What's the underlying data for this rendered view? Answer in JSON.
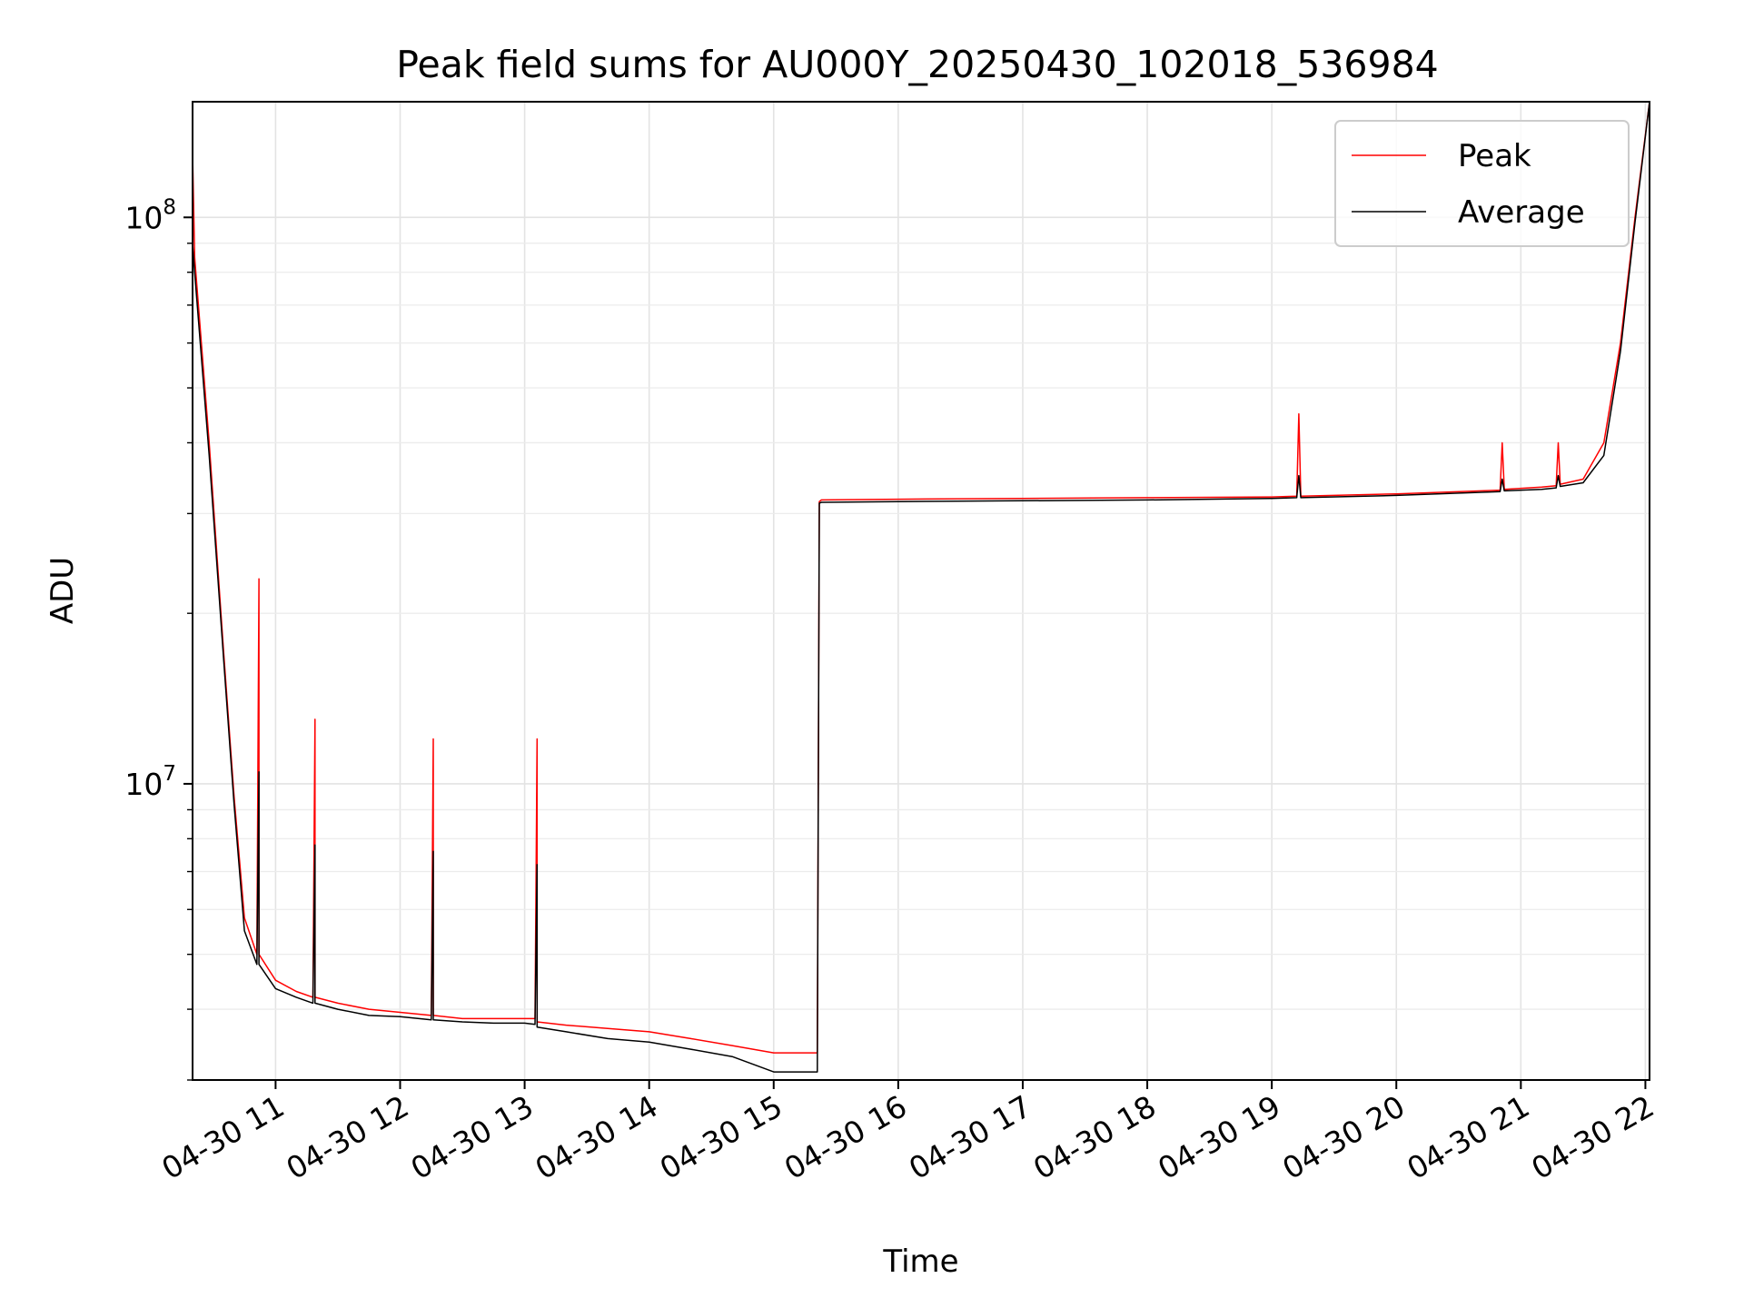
{
  "chart_data": {
    "type": "line",
    "title": "Peak field sums for AU000Y_20250430_102018_536984",
    "xlabel": "Time",
    "ylabel": "ADU",
    "y_scale": "log",
    "ylim": [
      3000000,
      160000000
    ],
    "xlim": [
      "2025-04-30 10:20",
      "2025-04-30 22:02"
    ],
    "grid": true,
    "legend_position": "top-right",
    "x_ticks": [
      {
        "value": "2025-04-30 11:00",
        "label": "04-30 11"
      },
      {
        "value": "2025-04-30 12:00",
        "label": "04-30 12"
      },
      {
        "value": "2025-04-30 13:00",
        "label": "04-30 13"
      },
      {
        "value": "2025-04-30 14:00",
        "label": "04-30 14"
      },
      {
        "value": "2025-04-30 15:00",
        "label": "04-30 15"
      },
      {
        "value": "2025-04-30 16:00",
        "label": "04-30 16"
      },
      {
        "value": "2025-04-30 17:00",
        "label": "04-30 17"
      },
      {
        "value": "2025-04-30 18:00",
        "label": "04-30 18"
      },
      {
        "value": "2025-04-30 19:00",
        "label": "04-30 19"
      },
      {
        "value": "2025-04-30 20:00",
        "label": "04-30 20"
      },
      {
        "value": "2025-04-30 21:00",
        "label": "04-30 21"
      },
      {
        "value": "2025-04-30 22:00",
        "label": "04-30 22"
      }
    ],
    "y_ticks": [
      {
        "value": 10000000,
        "base": "10",
        "exp": "7"
      },
      {
        "value": 100000000,
        "base": "10",
        "exp": "8"
      }
    ],
    "series": [
      {
        "name": "Peak",
        "color": "#ff0000",
        "x": [
          "2025-04-30 10:20",
          "2025-04-30 10:21",
          "2025-04-30 10:28",
          "2025-04-30 10:35",
          "2025-04-30 10:40",
          "2025-04-30 10:45",
          "2025-04-30 10:51",
          "2025-04-30 10:52",
          "2025-04-30 10:52",
          "2025-04-30 11:00",
          "2025-04-30 11:10",
          "2025-04-30 11:18",
          "2025-04-30 11:19",
          "2025-04-30 11:19",
          "2025-04-30 11:30",
          "2025-04-30 11:45",
          "2025-04-30 12:00",
          "2025-04-30 12:15",
          "2025-04-30 12:16",
          "2025-04-30 12:16",
          "2025-04-30 12:30",
          "2025-04-30 12:45",
          "2025-04-30 13:00",
          "2025-04-30 13:05",
          "2025-04-30 13:06",
          "2025-04-30 13:06",
          "2025-04-30 13:20",
          "2025-04-30 13:40",
          "2025-04-30 14:00",
          "2025-04-30 14:20",
          "2025-04-30 14:40",
          "2025-04-30 15:00",
          "2025-04-30 15:21",
          "2025-04-30 15:22",
          "2025-04-30 15:23",
          "2025-04-30 16:00",
          "2025-04-30 17:00",
          "2025-04-30 18:00",
          "2025-04-30 19:00",
          "2025-04-30 19:12",
          "2025-04-30 19:13",
          "2025-04-30 19:14",
          "2025-04-30 20:00",
          "2025-04-30 20:50",
          "2025-04-30 20:51",
          "2025-04-30 20:52",
          "2025-04-30 21:10",
          "2025-04-30 21:17",
          "2025-04-30 21:18",
          "2025-04-30 21:19",
          "2025-04-30 21:30",
          "2025-04-30 21:40",
          "2025-04-30 21:48",
          "2025-04-30 21:55",
          "2025-04-30 22:02"
        ],
        "y": [
          130000000,
          85000000,
          40000000,
          17000000,
          9500000,
          5800000,
          5000000,
          23000000,
          5000000,
          4500000,
          4300000,
          4200000,
          13000000,
          4200000,
          4100000,
          4000000,
          3950000,
          3900000,
          12000000,
          3900000,
          3850000,
          3850000,
          3850000,
          3850000,
          12000000,
          3800000,
          3750000,
          3700000,
          3650000,
          3550000,
          3450000,
          3350000,
          3350000,
          31500000,
          31700000,
          31800000,
          31900000,
          32000000,
          32100000,
          32200000,
          45000000,
          32200000,
          32500000,
          33000000,
          40000000,
          33100000,
          33400000,
          33600000,
          40000000,
          33800000,
          34500000,
          40000000,
          60000000,
          100000000,
          160000000
        ]
      },
      {
        "name": "Average",
        "color": "#000000",
        "x": [
          "2025-04-30 10:20",
          "2025-04-30 10:21",
          "2025-04-30 10:28",
          "2025-04-30 10:35",
          "2025-04-30 10:40",
          "2025-04-30 10:45",
          "2025-04-30 10:51",
          "2025-04-30 10:52",
          "2025-04-30 10:52",
          "2025-04-30 11:00",
          "2025-04-30 11:10",
          "2025-04-30 11:18",
          "2025-04-30 11:19",
          "2025-04-30 11:19",
          "2025-04-30 11:30",
          "2025-04-30 11:45",
          "2025-04-30 12:00",
          "2025-04-30 12:15",
          "2025-04-30 12:16",
          "2025-04-30 12:16",
          "2025-04-30 12:30",
          "2025-04-30 12:45",
          "2025-04-30 13:00",
          "2025-04-30 13:05",
          "2025-04-30 13:06",
          "2025-04-30 13:06",
          "2025-04-30 13:20",
          "2025-04-30 13:40",
          "2025-04-30 14:00",
          "2025-04-30 14:20",
          "2025-04-30 14:40",
          "2025-04-30 15:00",
          "2025-04-30 15:21",
          "2025-04-30 15:22",
          "2025-04-30 15:23",
          "2025-04-30 16:00",
          "2025-04-30 17:00",
          "2025-04-30 18:00",
          "2025-04-30 19:00",
          "2025-04-30 19:12",
          "2025-04-30 19:13",
          "2025-04-30 19:14",
          "2025-04-30 20:00",
          "2025-04-30 20:50",
          "2025-04-30 20:51",
          "2025-04-30 20:52",
          "2025-04-30 21:10",
          "2025-04-30 21:17",
          "2025-04-30 21:18",
          "2025-04-30 21:19",
          "2025-04-30 21:30",
          "2025-04-30 21:40",
          "2025-04-30 21:48",
          "2025-04-30 21:55",
          "2025-04-30 22:02"
        ],
        "y": [
          90000000,
          80000000,
          38000000,
          16500000,
          9200000,
          5500000,
          4800000,
          10500000,
          4800000,
          4350000,
          4200000,
          4100000,
          7800000,
          4100000,
          4000000,
          3900000,
          3880000,
          3830000,
          7600000,
          3830000,
          3800000,
          3780000,
          3780000,
          3760000,
          7200000,
          3720000,
          3650000,
          3550000,
          3500000,
          3400000,
          3300000,
          3100000,
          3100000,
          31300000,
          31400000,
          31500000,
          31600000,
          31700000,
          31900000,
          32000000,
          35000000,
          32000000,
          32300000,
          32800000,
          34500000,
          32900000,
          33100000,
          33300000,
          35000000,
          33500000,
          34000000,
          38000000,
          58000000,
          98000000,
          160000000
        ]
      }
    ]
  }
}
